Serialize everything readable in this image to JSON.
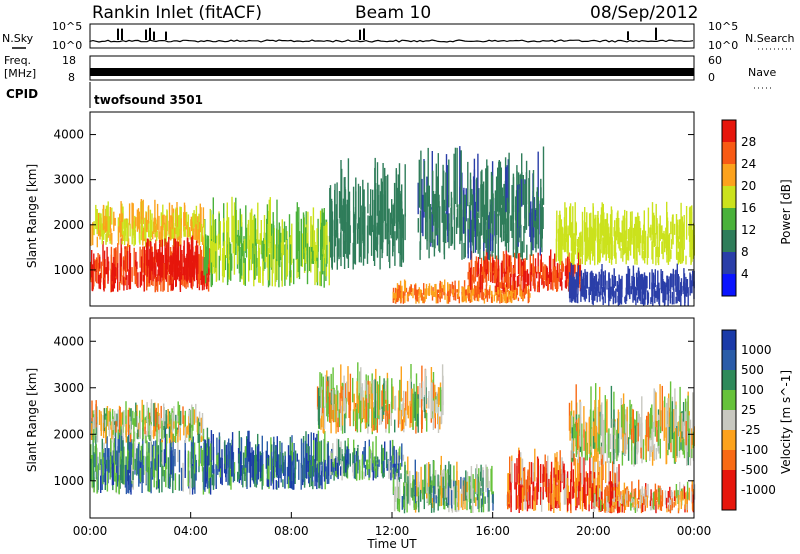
{
  "header": {
    "site": "Rankin Inlet (fitACF)",
    "beam": "Beam 10",
    "date": "08/Sep/2012"
  },
  "left_labels": {
    "nsky": "N.Sky",
    "freq_line1": "Freq.",
    "freq_line2": "[MHz]",
    "cpid": "CPID"
  },
  "right_labels": {
    "nsearch": "N.Search",
    "nave": "Nave"
  },
  "cpid_value": "twofsound 3501",
  "chart_data": [
    {
      "type": "line",
      "panel": "noise",
      "left_axis_ticks": [
        "10^5",
        "10^0"
      ],
      "right_axis_ticks": [
        "10^5",
        "10^0"
      ],
      "left_label": "N.Sky",
      "right_label": "N.Search"
    },
    {
      "type": "line",
      "panel": "frequency",
      "left_axis_ticks": [
        "18",
        "8"
      ],
      "right_axis_ticks": [
        "60",
        "0"
      ],
      "left_label": "Freq. [MHz]",
      "right_label": "Nave"
    },
    {
      "type": "heatmap",
      "panel": "power",
      "title": "",
      "xlabel": "",
      "ylabel": "Slant Range [km]",
      "ylim": [
        200,
        4500
      ],
      "yticks": [
        1000,
        2000,
        3000,
        4000
      ],
      "colorbar": {
        "label": "Power [dB]",
        "ticks": [
          4,
          8,
          12,
          16,
          20,
          24,
          28
        ],
        "range": [
          0,
          32
        ],
        "colors": [
          "#0a14ff",
          "#2a3ea8",
          "#2f7d5a",
          "#49b13a",
          "#cbe21c",
          "#fca21c",
          "#f85a14",
          "#e6160c"
        ]
      },
      "scatter_regions": [
        {
          "t0": 0.0,
          "t1": 4.8,
          "r0": 500,
          "r1": 1500,
          "level": 28
        },
        {
          "t0": 0.0,
          "t1": 4.5,
          "r0": 1500,
          "r1": 2400,
          "level": 20
        },
        {
          "t0": 2.2,
          "t1": 4.3,
          "r0": 700,
          "r1": 1600,
          "level": 30
        },
        {
          "t0": 4.5,
          "t1": 9.5,
          "r0": 600,
          "r1": 2300,
          "level": 16
        },
        {
          "t0": 9.5,
          "t1": 12.5,
          "r0": 1000,
          "r1": 3100,
          "level": 10
        },
        {
          "t0": 12.0,
          "t1": 17.5,
          "r0": 250,
          "r1": 700,
          "level": 24
        },
        {
          "t0": 15.0,
          "t1": 19.5,
          "r0": 500,
          "r1": 1300,
          "level": 28
        },
        {
          "t0": 13.0,
          "t1": 18.0,
          "r0": 1200,
          "r1": 3300,
          "level": 9
        },
        {
          "t0": 18.5,
          "t1": 24.0,
          "r0": 1100,
          "r1": 2300,
          "level": 18
        },
        {
          "t0": 19.0,
          "t1": 24.0,
          "r0": 200,
          "r1": 1000,
          "level": 6
        }
      ]
    },
    {
      "type": "heatmap",
      "panel": "velocity",
      "title": "",
      "xlabel": "Time UT",
      "ylabel": "Slant Range [km]",
      "ylim": [
        200,
        4500
      ],
      "yticks": [
        1000,
        2000,
        3000,
        4000
      ],
      "xticks": [
        "00:00",
        "04:00",
        "08:00",
        "12:00",
        "16:00",
        "20:00",
        "00:00"
      ],
      "colorbar": {
        "label": "Velocity [m s^-1]",
        "ticks": [
          "1000",
          "500",
          "100",
          "25",
          "-25",
          "-100",
          "-500",
          "-1000"
        ],
        "colors": [
          "#1a3aa8",
          "#2a5ca8",
          "#2f8a5a",
          "#66c23a",
          "#c8c8c0",
          "#fca21c",
          "#f86a14",
          "#e6160c",
          "#e6160c"
        ]
      },
      "scatter_regions": [
        {
          "t0": 0.0,
          "t1": 4.8,
          "r0": 700,
          "r1": 1900,
          "level": 2
        },
        {
          "t0": 0.0,
          "t1": 4.5,
          "r0": 1800,
          "r1": 2600,
          "level": 4
        },
        {
          "t0": 4.5,
          "t1": 9.5,
          "r0": 800,
          "r1": 1900,
          "level": 1
        },
        {
          "t0": 9.5,
          "t1": 12.5,
          "r0": 1000,
          "r1": 1800,
          "level": 2
        },
        {
          "t0": 9.0,
          "t1": 14.0,
          "r0": 2000,
          "r1": 3300,
          "level": 4
        },
        {
          "t0": 12.0,
          "t1": 16.0,
          "r0": 300,
          "r1": 1300,
          "level": 3
        },
        {
          "t0": 16.5,
          "t1": 21.0,
          "r0": 300,
          "r1": 1500,
          "level": 6
        },
        {
          "t0": 19.0,
          "t1": 24.0,
          "r0": 1300,
          "r1": 2800,
          "level": 4
        },
        {
          "t0": 20.0,
          "t1": 24.0,
          "r0": 300,
          "r1": 900,
          "level": 5
        }
      ]
    }
  ]
}
